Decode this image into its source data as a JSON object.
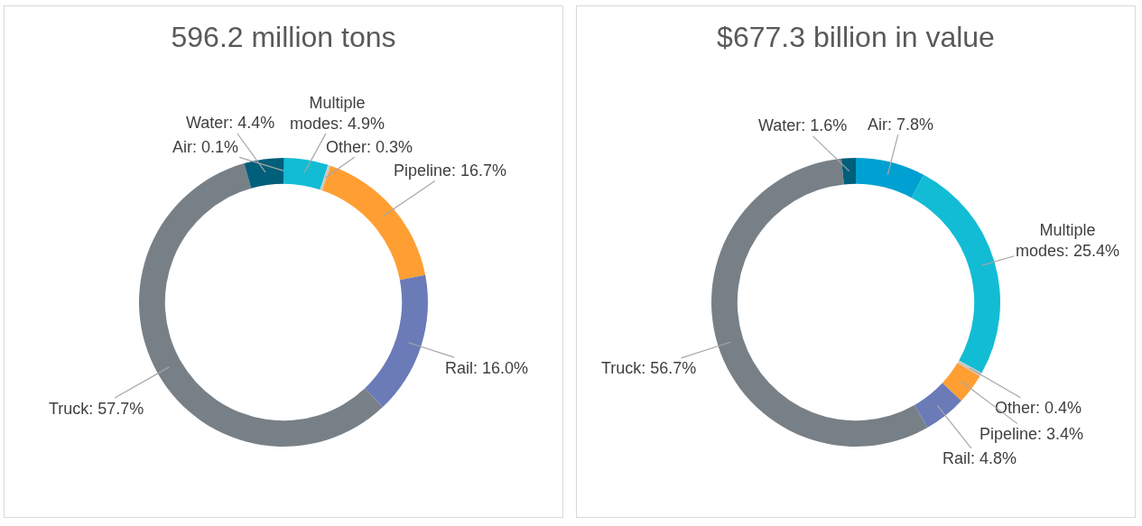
{
  "chart_data": [
    {
      "type": "donut",
      "title": "596.2 million tons",
      "categories": [
        "Air",
        "Multiple modes",
        "Other",
        "Pipeline",
        "Rail",
        "Truck",
        "Water"
      ],
      "values": [
        0.1,
        4.9,
        0.3,
        16.7,
        16.0,
        57.7,
        4.4
      ],
      "colors": [
        "#00a0d2",
        "#12bcd4",
        "#c9c9c9",
        "#ff9f33",
        "#6b7bb8",
        "#788087",
        "#005f7a"
      ],
      "value_labels": [
        "0.1%",
        "4.9%",
        "0.3%",
        "16.7%",
        "16.0%",
        "57.7%",
        "4.4%"
      ],
      "legend": false
    },
    {
      "type": "donut",
      "title": "$677.3 billion in value",
      "categories": [
        "Air",
        "Multiple modes",
        "Other",
        "Pipeline",
        "Rail",
        "Truck",
        "Water"
      ],
      "values": [
        7.8,
        25.4,
        0.4,
        3.4,
        4.8,
        56.7,
        1.6
      ],
      "colors": [
        "#00a0d2",
        "#12bcd4",
        "#c9c9c9",
        "#ff9f33",
        "#6b7bb8",
        "#788087",
        "#005f7a"
      ],
      "value_labels": [
        "7.8%",
        "25.4%",
        "0.4%",
        "3.4%",
        "4.8%",
        "56.7%",
        "1.6%"
      ],
      "legend": false
    }
  ]
}
